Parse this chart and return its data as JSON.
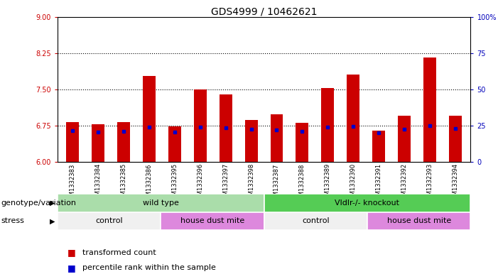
{
  "title": "GDS4999 / 10462621",
  "samples": [
    "GSM1332383",
    "GSM1332384",
    "GSM1332385",
    "GSM1332386",
    "GSM1332395",
    "GSM1332396",
    "GSM1332397",
    "GSM1332398",
    "GSM1332387",
    "GSM1332388",
    "GSM1332389",
    "GSM1332390",
    "GSM1332391",
    "GSM1332392",
    "GSM1332393",
    "GSM1332394"
  ],
  "red_values": [
    6.82,
    6.78,
    6.82,
    7.78,
    6.73,
    7.5,
    7.4,
    6.86,
    6.98,
    6.8,
    7.52,
    7.8,
    6.64,
    6.96,
    8.16,
    6.95
  ],
  "blue_values": [
    6.64,
    6.62,
    6.63,
    6.72,
    6.62,
    6.72,
    6.7,
    6.68,
    6.66,
    6.63,
    6.72,
    6.73,
    6.6,
    6.67,
    6.75,
    6.69
  ],
  "ymin": 6.0,
  "ymax": 9.0,
  "yticks_left": [
    6,
    6.75,
    7.5,
    8.25,
    9
  ],
  "yticks_right": [
    0,
    25,
    50,
    75,
    100
  ],
  "dotted_lines": [
    6.75,
    7.5,
    8.25
  ],
  "bar_color": "#cc0000",
  "blue_color": "#0000cc",
  "bar_width": 0.5,
  "genotype_groups": [
    {
      "label": "wild type",
      "start": 0,
      "end": 8,
      "color": "#aaddaa"
    },
    {
      "label": "Vldlr-/- knockout",
      "start": 8,
      "end": 16,
      "color": "#55cc55"
    }
  ],
  "stress_groups": [
    {
      "label": "control",
      "start": 0,
      "end": 4,
      "color": "#f0f0f0"
    },
    {
      "label": "house dust mite",
      "start": 4,
      "end": 8,
      "color": "#dd88dd"
    },
    {
      "label": "control",
      "start": 8,
      "end": 12,
      "color": "#f0f0f0"
    },
    {
      "label": "house dust mite",
      "start": 12,
      "end": 16,
      "color": "#dd88dd"
    }
  ],
  "legend_items": [
    {
      "label": "transformed count",
      "color": "#cc0000"
    },
    {
      "label": "percentile rank within the sample",
      "color": "#0000cc"
    }
  ],
  "genotype_label": "genotype/variation",
  "stress_label": "stress",
  "left_axis_color": "#cc0000",
  "right_axis_color": "#0000bb",
  "title_fontsize": 10,
  "tick_fontsize": 7,
  "label_fontsize": 8
}
